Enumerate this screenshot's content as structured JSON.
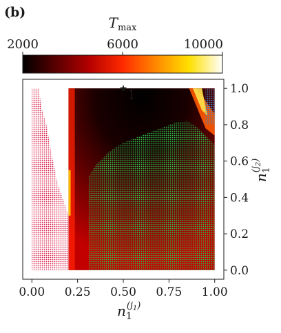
{
  "panel_label": "(b)",
  "chart_data": {
    "type": "heatmap",
    "xlabel": "n",
    "xlabel_subscript": "1",
    "xlabel_superscript": "(j",
    "xlabel_superscript_sub": "1",
    "xlabel_superscript_close": ")",
    "ylabel": "n",
    "ylabel_subscript": "1",
    "ylabel_superscript": "(j",
    "ylabel_superscript_sub": "2",
    "ylabel_superscript_close": ")",
    "xlim": [
      -0.05,
      1.05
    ],
    "ylim": [
      -0.05,
      1.05
    ],
    "x_ticks": [
      0.0,
      0.25,
      0.5,
      0.75,
      1.0
    ],
    "x_tick_labels": [
      "0.00",
      "0.25",
      "0.50",
      "0.75",
      "1.00"
    ],
    "y_ticks": [
      0.0,
      0.2,
      0.4,
      0.6,
      0.8,
      1.0
    ],
    "y_tick_labels": [
      "0.0",
      "0.2",
      "0.4",
      "0.6",
      "0.8",
      "1.0"
    ],
    "colorbar": {
      "label": "T",
      "label_subscript": "max",
      "range": [
        2000,
        10000
      ],
      "ticks": [
        2000,
        6000,
        10000
      ],
      "tick_labels": [
        "2000",
        "6000",
        "10000"
      ],
      "colormap": "hot",
      "colors": [
        "#000000",
        "#5a0000",
        "#b40000",
        "#ff2a00",
        "#ff8800",
        "#ffe000",
        "#ffffff"
      ]
    },
    "heat_region": {
      "x_range": [
        0.2,
        1.0
      ],
      "y_range": [
        0.0,
        1.0
      ],
      "min_value": 2000,
      "max_value": 10000
    },
    "region_colors": {
      "red_dots": "#d9204a",
      "green_dots": "#2ec24e",
      "blue_dots": "#3a8fd6"
    },
    "red_region_boundary": [
      [
        0.04,
        1.0
      ],
      [
        0.05,
        0.9
      ],
      [
        0.08,
        0.8
      ],
      [
        0.1,
        0.68
      ],
      [
        0.12,
        0.58
      ],
      [
        0.14,
        0.48
      ],
      [
        0.17,
        0.39
      ],
      [
        0.2,
        0.3
      ],
      [
        0.21,
        0.27
      ],
      [
        0.21,
        0.0
      ]
    ],
    "green_region_boundary": [
      [
        0.31,
        0.0
      ],
      [
        0.31,
        0.51
      ],
      [
        0.35,
        0.58
      ],
      [
        0.42,
        0.65
      ],
      [
        0.5,
        0.7
      ],
      [
        0.6,
        0.74
      ],
      [
        0.7,
        0.78
      ],
      [
        0.78,
        0.81
      ],
      [
        0.85,
        0.82
      ],
      [
        0.9,
        0.79
      ],
      [
        0.95,
        0.74
      ],
      [
        1.0,
        0.69
      ],
      [
        1.0,
        0.0
      ]
    ],
    "blue_region": {
      "x_range": [
        0.95,
        1.0
      ],
      "y_range": [
        0.8,
        1.0
      ]
    },
    "annotation": {
      "x": 0.5,
      "y": 1.0,
      "label": "1"
    }
  }
}
